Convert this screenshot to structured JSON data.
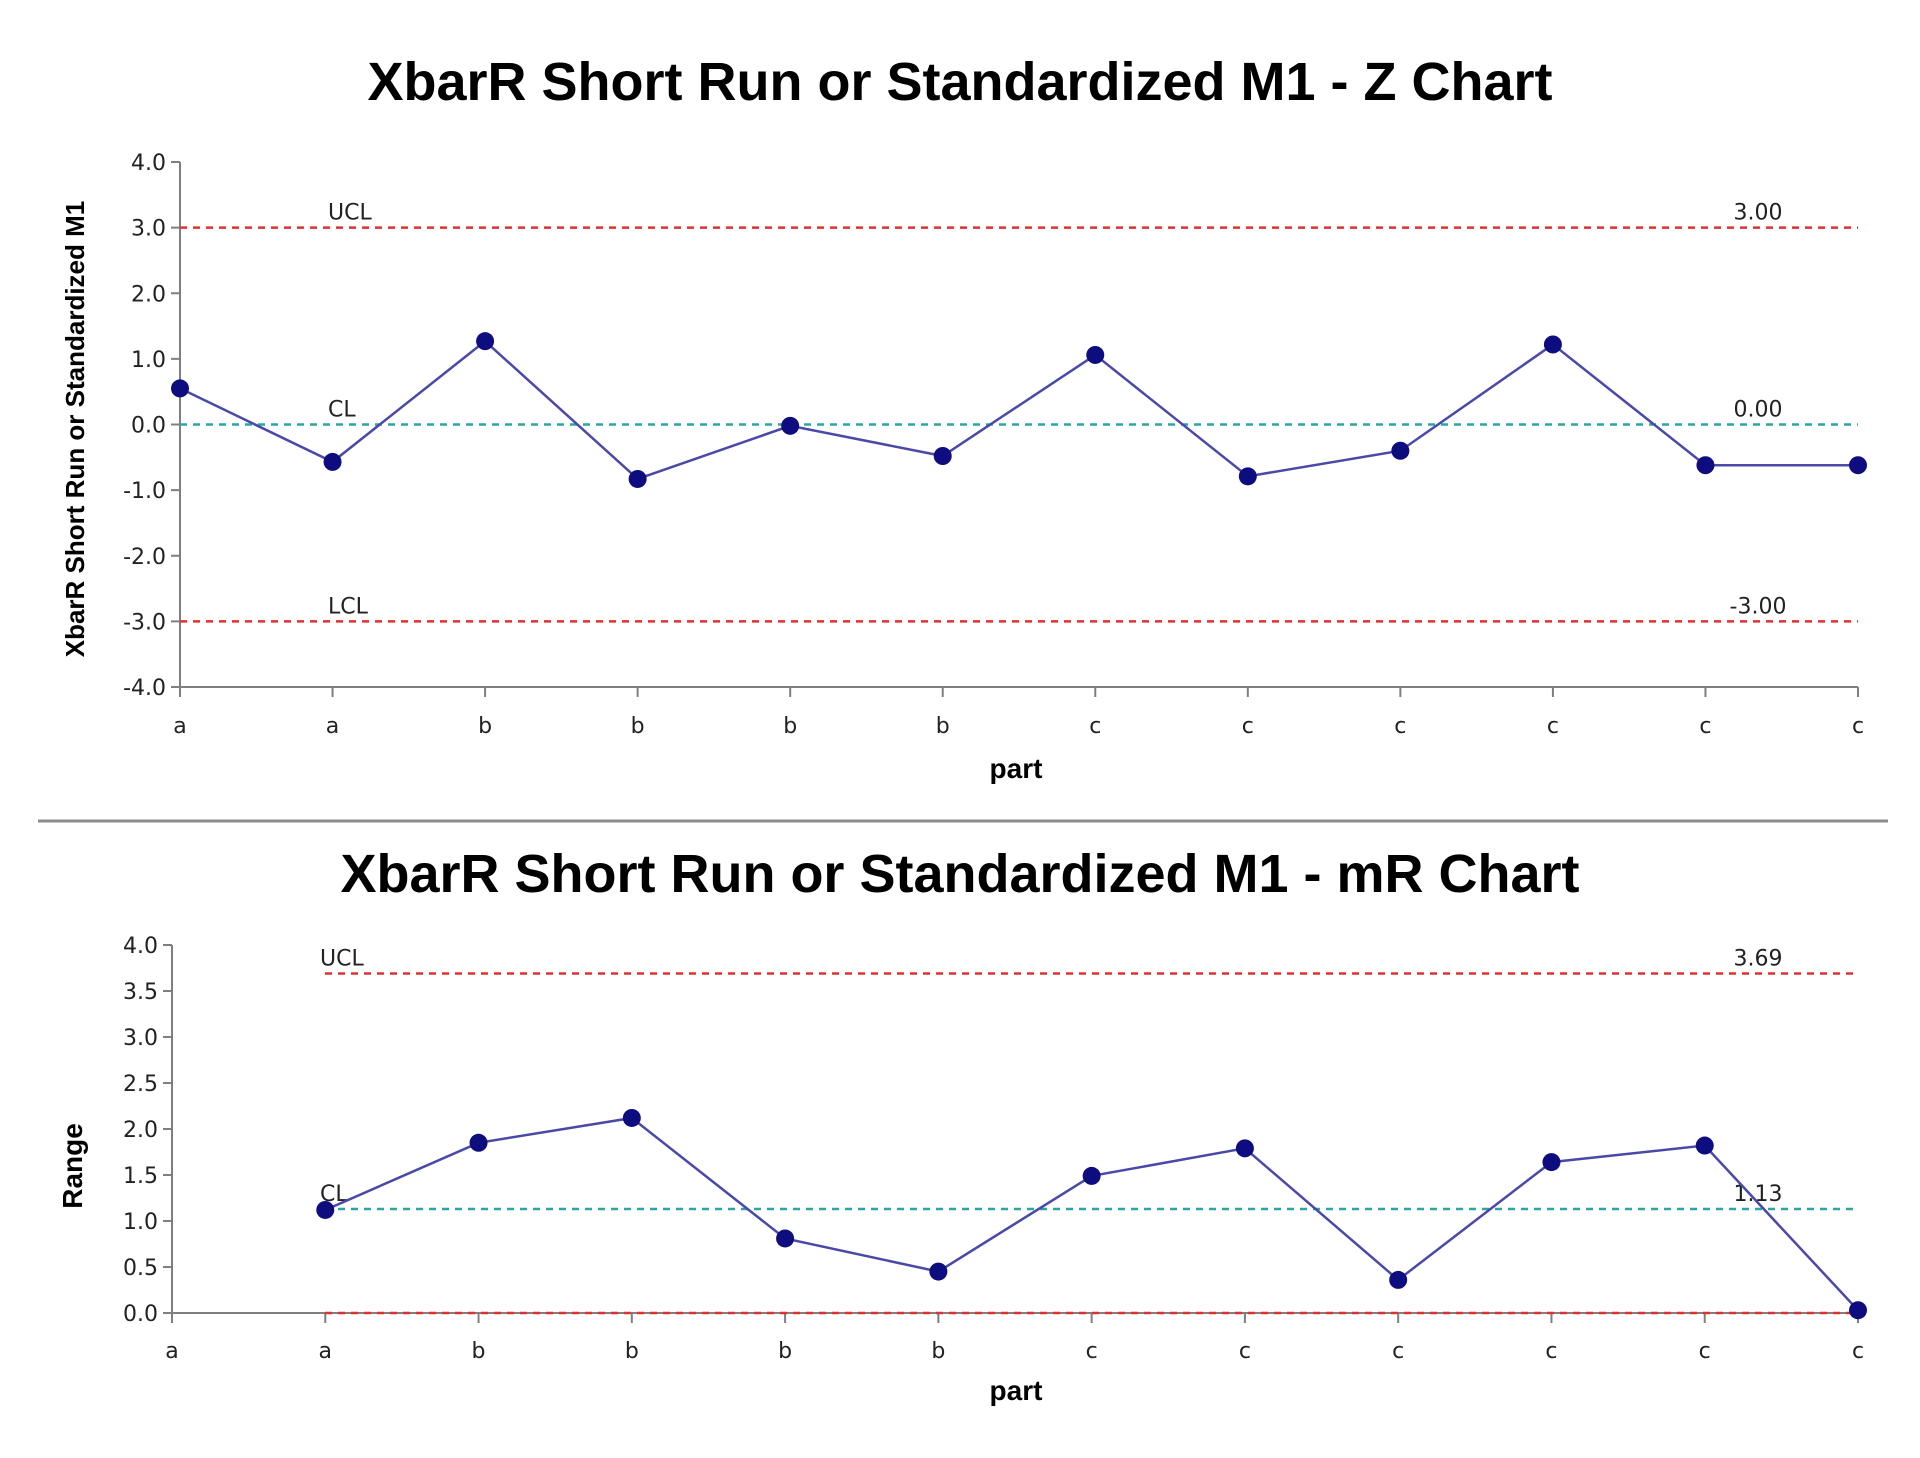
{
  "chart_data": [
    {
      "type": "line",
      "title": "XbarR Short Run or Standardized M1 - Z Chart",
      "xlabel": "part",
      "ylabel": "XbarR Short Run or Standardized M1",
      "categories": [
        "a",
        "a",
        "b",
        "b",
        "b",
        "b",
        "c",
        "c",
        "c",
        "c",
        "c",
        "c"
      ],
      "ylim": [
        -4.0,
        4.0
      ],
      "yticks": [
        "4.0",
        "3.0",
        "2.0",
        "1.0",
        "0.0",
        "-1.0",
        "-2.0",
        "-3.0",
        "-4.0"
      ],
      "series": [
        {
          "values": [
            0.55,
            -0.57,
            1.27,
            -0.83,
            -0.02,
            -0.48,
            1.06,
            -0.79,
            -0.4,
            1.22,
            -0.62,
            -0.62
          ],
          "color": "#4a49a8",
          "marker_color": "#0d0d80"
        }
      ],
      "control_lines": [
        {
          "label": "UCL",
          "value": 3.0,
          "value_text": "3.00",
          "color": "#e03030"
        },
        {
          "label": "CL",
          "value": 0.0,
          "value_text": "0.00",
          "color": "#2aa6a6"
        },
        {
          "label": "LCL",
          "value": -3.0,
          "value_text": "-3.00",
          "color": "#e03030"
        }
      ],
      "grid": false,
      "legend": "none"
    },
    {
      "type": "line",
      "title": "XbarR Short Run or Standardized M1 - mR Chart",
      "xlabel": "part",
      "ylabel": "Range",
      "categories": [
        "a",
        "a",
        "b",
        "b",
        "b",
        "b",
        "c",
        "c",
        "c",
        "c",
        "c",
        "c"
      ],
      "ylim": [
        0.0,
        4.0
      ],
      "yticks": [
        "4.0",
        "3.5",
        "3.0",
        "2.5",
        "2.0",
        "1.5",
        "1.0",
        "0.5",
        "0.0"
      ],
      "series": [
        {
          "values": [
            null,
            1.12,
            1.85,
            2.12,
            0.81,
            0.45,
            1.49,
            1.79,
            0.36,
            1.64,
            1.82,
            0.03
          ],
          "color": "#4a49a8",
          "marker_color": "#0d0d80"
        }
      ],
      "control_lines": [
        {
          "label": "UCL",
          "value": 3.69,
          "value_text": "3.69",
          "color": "#e03030"
        },
        {
          "label": "CL",
          "value": 1.13,
          "value_text": "1.13",
          "color": "#2aa6a6"
        },
        {
          "label": "",
          "value": 0.0,
          "value_text": "",
          "color": "#e03030"
        }
      ],
      "grid": false,
      "legend": "none"
    }
  ]
}
